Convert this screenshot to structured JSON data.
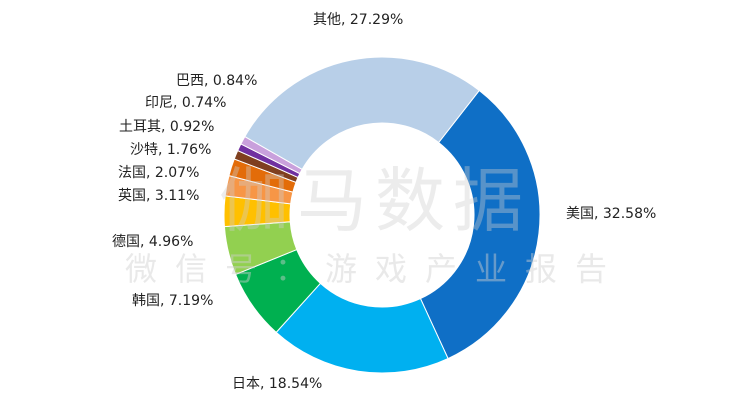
{
  "chart_data": {
    "type": "pie",
    "donut": true,
    "slices": [
      {
        "name": "美国",
        "label": "美国, 32.58%",
        "value": 32.58,
        "color": "#0f6fc6"
      },
      {
        "name": "日本",
        "label": "日本, 18.54%",
        "value": 18.54,
        "color": "#00b0f0"
      },
      {
        "name": "韩国",
        "label": "韩国, 7.19%",
        "value": 7.19,
        "color": "#00b050"
      },
      {
        "name": "德国",
        "label": "德国, 4.96%",
        "value": 4.96,
        "color": "#92d050"
      },
      {
        "name": "英国",
        "label": "英国, 3.11%",
        "value": 3.11,
        "color": "#ffc000"
      },
      {
        "name": "法国",
        "label": "法国, 2.07%",
        "value": 2.07,
        "color": "#f79646"
      },
      {
        "name": "沙特",
        "label": "沙特, 1.76%",
        "value": 1.76,
        "color": "#e36c09"
      },
      {
        "name": "土耳其",
        "label": "土耳其, 0.92%",
        "value": 0.92,
        "color": "#7f3f1f"
      },
      {
        "name": "印尼",
        "label": "印尼, 0.74%",
        "value": 0.74,
        "color": "#7030a0"
      },
      {
        "name": "巴西",
        "label": "巴西, 0.84%",
        "value": 0.84,
        "color": "#c9a0dc"
      },
      {
        "name": "其他",
        "label": "其他, 27.29%",
        "value": 27.29,
        "color": "#b8cfe8"
      }
    ]
  },
  "watermark": {
    "main": "伽马数据",
    "sub": "微信号：游戏产业报告"
  }
}
